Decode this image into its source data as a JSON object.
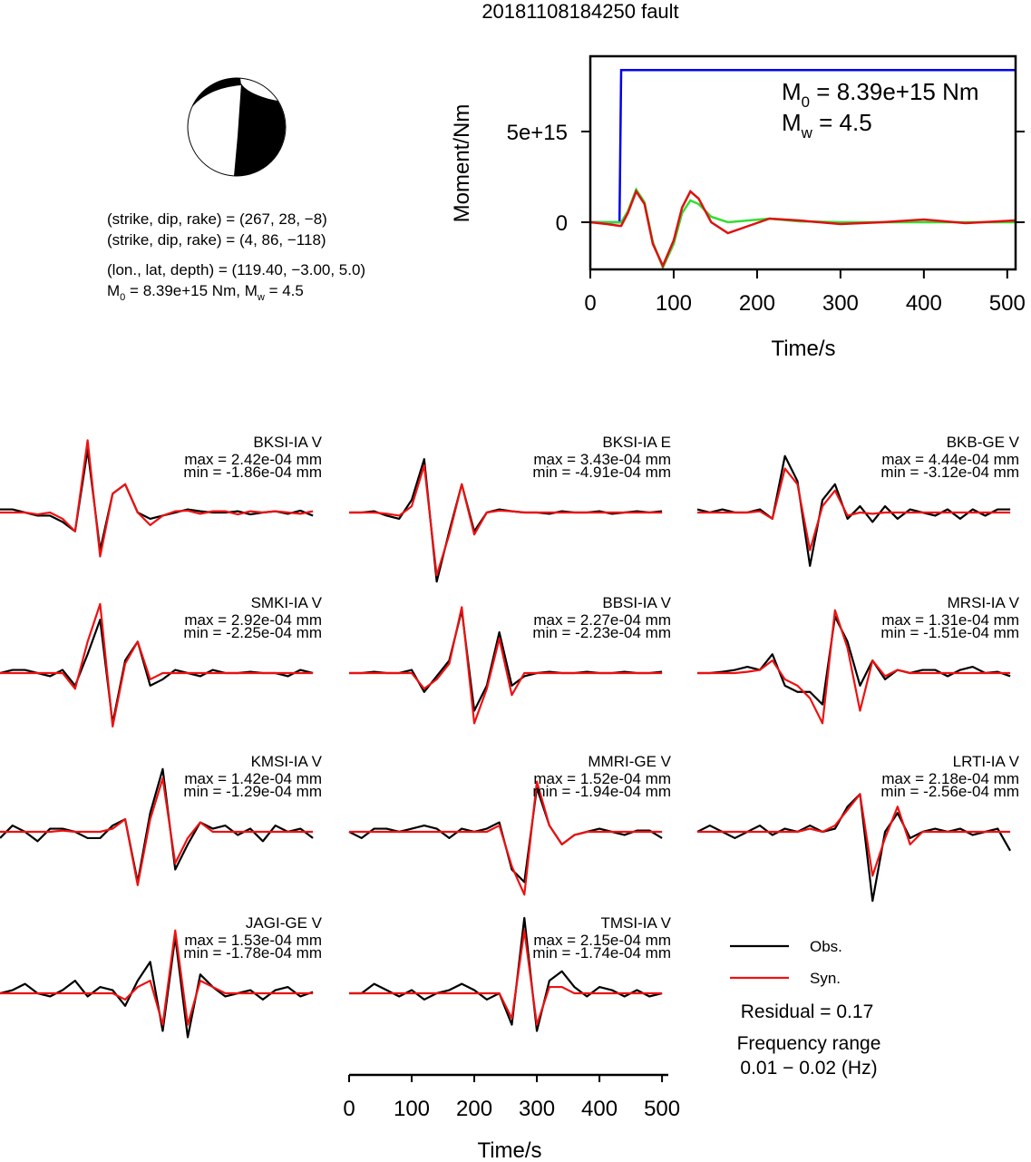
{
  "title": "20181108184250 fault",
  "info": [
    "(strike, dip, rake) = (267, 28, −8)",
    "(strike, dip, rake) = (4, 86, −118)",
    "(lon., lat, depth) = (119.40, −3.00, 5.0)"
  ],
  "info_moment": [
    {
      "text": "M"
    },
    {
      "sub": "0"
    },
    {
      "text": " = 8.39e+15 Nm, M"
    },
    {
      "sub": "w"
    },
    {
      "text": " = 4.5"
    }
  ],
  "chart_data": [
    {
      "type": "line",
      "xlabel": "Time/s",
      "ylabel": "Moment/Nm",
      "annotation": [
        [
          {
            "text": "M"
          },
          {
            "sub": "0"
          },
          {
            "text": " = 8.39e+15 Nm"
          }
        ],
        [
          {
            "text": "M"
          },
          {
            "sub": "w"
          },
          {
            "text": " = 4.5"
          }
        ]
      ],
      "x": [
        0,
        20,
        35,
        37,
        45,
        55,
        65,
        75,
        87,
        100,
        110,
        120,
        130,
        145,
        165,
        190,
        215,
        250,
        300,
        350,
        400,
        450,
        510
      ],
      "series": [
        {
          "color": "#0000ee",
          "values": [
            0,
            0,
            0,
            8390000000000000.0,
            8390000000000000.0,
            8390000000000000.0,
            8390000000000000.0,
            8390000000000000.0,
            8390000000000000.0,
            8390000000000000.0,
            8390000000000000.0,
            8390000000000000.0,
            8390000000000000.0,
            8390000000000000.0,
            8390000000000000.0,
            8390000000000000.0,
            8390000000000000.0,
            8390000000000000.0,
            8390000000000000.0,
            8390000000000000.0,
            8390000000000000.0,
            8390000000000000.0,
            8390000000000000.0
          ]
        },
        {
          "color": "#33dd33",
          "values": [
            0,
            0,
            0,
            0,
            600000000000000.0,
            1800000000000000.0,
            1100000000000000.0,
            -1100000000000000.0,
            -2500000000000000.0,
            -1200000000000000.0,
            500000000000000.0,
            1200000000000000.0,
            1000000000000000.0,
            300000000000000.0,
            0,
            100000000000000.0,
            200000000000000.0,
            50000000000000.0,
            0,
            0,
            0,
            0,
            0
          ]
        },
        {
          "color": "#dd1111",
          "values": [
            0,
            -100000000000000.0,
            -200000000000000.0,
            -200000000000000.0,
            500000000000000.0,
            1700000000000000.0,
            1000000000000000.0,
            -1200000000000000.0,
            -2400000000000000.0,
            -1000000000000000.0,
            800000000000000.0,
            1700000000000000.0,
            1300000000000000.0,
            0,
            -600000000000000.0,
            -200000000000000.0,
            200000000000000.0,
            100000000000000.0,
            -100000000000000.0,
            0,
            150000000000000.0,
            -50000000000000.0,
            100000000000000.0
          ]
        }
      ],
      "xlim": [
        0,
        510
      ],
      "xticks": [
        0,
        100,
        200,
        300,
        400,
        500
      ],
      "ylim": [
        -2600000000000000.0,
        9150000000000000.0
      ],
      "yticks": [
        0,
        {
          "value": 5000000000000000.0,
          "label": "5e+15"
        }
      ]
    },
    {
      "type": "waveform",
      "xlabel": "Time/s",
      "x": [
        0,
        20,
        40,
        60,
        80,
        100,
        120,
        140,
        160,
        180,
        200,
        220,
        240,
        260,
        280,
        300,
        320,
        340,
        360,
        380,
        400,
        420,
        440,
        460,
        480,
        500
      ],
      "xlim": [
        0,
        510
      ],
      "xticks": [
        0,
        100,
        200,
        300,
        400,
        500
      ],
      "ylim": [
        -1.3,
        1.3
      ],
      "legend": [
        {
          "name": "Obs.",
          "color": "#000000"
        },
        {
          "name": "Syn.",
          "color": "#ee1111"
        }
      ],
      "residual": "Residual = 0.17",
      "frequency": [
        "Frequency range",
        "0.01 − 0.02 (Hz)"
      ],
      "panels": [
        {
          "station": "BKSI-IA V",
          "max": "max = 2.42e-04 mm",
          "min": "min = -1.86e-04 mm",
          "obs": [
            0.05,
            0.05,
            0,
            -0.05,
            -0.05,
            -0.15,
            -0.3,
            1.0,
            -0.6,
            0.3,
            0.45,
            0,
            -0.1,
            -0.05,
            0,
            0.05,
            0.02,
            0,
            0,
            0.02,
            -0.03,
            0,
            0.02,
            -0.02,
            0.03,
            -0.05
          ],
          "syn": [
            0,
            0,
            0,
            -0.03,
            0,
            -0.1,
            -0.3,
            1.15,
            -0.7,
            0.3,
            0.45,
            0,
            -0.2,
            -0.05,
            0.02,
            0.03,
            -0.02,
            0.02,
            0.02,
            -0.03,
            0.02,
            0,
            0.02,
            0,
            -0.02,
            0.02
          ]
        },
        {
          "station": "BKSI-IA E",
          "max": "max = 3.43e-04 mm",
          "min": "min = -4.91e-04 mm",
          "obs": [
            0,
            0,
            0.02,
            -0.05,
            -0.1,
            0.2,
            0.85,
            -1.1,
            -0.3,
            0.45,
            -0.3,
            0,
            0.05,
            0.02,
            0,
            0,
            -0.02,
            0.02,
            0,
            0,
            0.02,
            -0.02,
            0,
            0.02,
            0,
            0.02
          ],
          "syn": [
            0,
            0,
            0,
            -0.02,
            -0.05,
            0.1,
            0.75,
            -1.0,
            -0.35,
            0.45,
            -0.35,
            0,
            0.03,
            0.02,
            0,
            0,
            0,
            0,
            0,
            0,
            0,
            0,
            0,
            0,
            0,
            0
          ]
        },
        {
          "station": "BKB-GE V",
          "max": "max = 4.44e-04 mm",
          "min": "min = -3.12e-04 mm",
          "obs": [
            0.05,
            0,
            0.05,
            0,
            0,
            0.05,
            -0.1,
            0.9,
            0.5,
            -0.85,
            0.2,
            0.45,
            -0.1,
            0.1,
            -0.15,
            0.1,
            -0.1,
            0.05,
            0,
            -0.05,
            0.05,
            -0.1,
            0.05,
            -0.05,
            0.05,
            0.05
          ],
          "syn": [
            0,
            0,
            0,
            0,
            0,
            0.02,
            -0.1,
            0.7,
            0.45,
            -0.6,
            0.1,
            0.35,
            -0.05,
            0,
            -0.02,
            0,
            0,
            0,
            0,
            0,
            0,
            0,
            0,
            0,
            0,
            0
          ]
        },
        {
          "station": "SMKI-IA V",
          "max": "max = 2.92e-04 mm",
          "min": "min = -2.25e-04 mm",
          "obs": [
            0,
            0.05,
            0.05,
            0,
            -0.05,
            0.05,
            -0.2,
            0.3,
            0.85,
            -0.8,
            0.2,
            0.5,
            -0.2,
            -0.1,
            0.05,
            0,
            -0.05,
            0.05,
            0,
            0,
            0.02,
            0,
            0,
            -0.05,
            0.05,
            0
          ],
          "syn": [
            0,
            0,
            0,
            0,
            0,
            0,
            -0.25,
            0.5,
            1.1,
            -0.85,
            0.15,
            0.5,
            -0.1,
            0,
            0,
            0,
            0,
            0,
            0,
            0,
            0,
            0,
            0,
            0,
            0,
            0
          ]
        },
        {
          "station": "BBSI-IA V",
          "max": "max = 2.27e-04 mm",
          "min": "min = -2.23e-04 mm",
          "obs": [
            0,
            0,
            0.02,
            0,
            0,
            0.05,
            -0.3,
            -0.05,
            0.2,
            1.0,
            -0.6,
            -0.2,
            0.65,
            -0.2,
            -0.05,
            0,
            0.02,
            0,
            0,
            0.02,
            0,
            0,
            0.02,
            0,
            0,
            0.02
          ],
          "syn": [
            0,
            0,
            0,
            0,
            0,
            0,
            -0.25,
            -0.1,
            0.15,
            1.05,
            -0.8,
            -0.25,
            0.55,
            -0.35,
            0,
            0,
            0,
            0,
            0,
            0,
            0,
            0,
            0,
            0,
            0,
            0
          ]
        },
        {
          "station": "MRSI-IA V",
          "max": "max = 1.31e-04 mm",
          "min": "min = -1.51e-04 mm",
          "obs": [
            0,
            0,
            0.02,
            0.05,
            0.1,
            0.05,
            0.3,
            -0.2,
            -0.3,
            -0.3,
            -0.5,
            0.9,
            0.5,
            -0.2,
            0.2,
            -0.1,
            0.05,
            0,
            0.05,
            0.05,
            -0.05,
            0.05,
            0.1,
            0,
            0.02,
            -0.05
          ],
          "syn": [
            0,
            0,
            0,
            0,
            0.02,
            0.05,
            0.2,
            -0.1,
            -0.2,
            -0.4,
            -0.8,
            1.0,
            0.4,
            -0.6,
            0.2,
            -0.05,
            0.05,
            0,
            0,
            0,
            0,
            0,
            0,
            0,
            0,
            0
          ]
        },
        {
          "station": "KMSI-IA V",
          "max": "max = 1.42e-04 mm",
          "min": "min = -1.29e-04 mm",
          "obs": [
            -0.1,
            0.1,
            0,
            -0.15,
            0.05,
            0.05,
            0,
            -0.1,
            -0.1,
            0.1,
            0.2,
            -0.8,
            0.3,
            1.0,
            -0.6,
            -0.2,
            0.15,
            0.05,
            0.1,
            -0.05,
            0.05,
            -0.15,
            0.1,
            0,
            0.05,
            -0.1
          ],
          "syn": [
            0,
            0,
            0,
            0,
            0,
            0.02,
            0,
            0,
            0,
            0.05,
            0.2,
            -0.85,
            0.2,
            0.85,
            -0.5,
            -0.1,
            0.15,
            0,
            0,
            0,
            0,
            0,
            0,
            0,
            0,
            0
          ]
        },
        {
          "station": "MMRI-GE V",
          "max": "max = 1.52e-04 mm",
          "min": "min = -1.94e-04 mm",
          "obs": [
            0,
            -0.1,
            0.05,
            0.05,
            0,
            0.05,
            0.1,
            0.05,
            -0.1,
            0.05,
            0,
            0.05,
            0.15,
            -0.6,
            -0.8,
            0.7,
            0.1,
            -0.2,
            -0.05,
            0,
            0.05,
            0,
            -0.05,
            0.02,
            0.02,
            -0.1
          ],
          "syn": [
            0,
            0,
            0,
            0,
            0,
            0,
            0,
            0,
            0,
            0,
            0,
            0,
            0.1,
            -0.55,
            -1.0,
            0.8,
            0.1,
            -0.2,
            -0.05,
            0,
            0,
            0,
            0,
            0,
            0,
            0
          ]
        },
        {
          "station": "LRTI-IA V",
          "max": "max = 2.18e-04 mm",
          "min": "min = -2.56e-04 mm",
          "obs": [
            0,
            0.1,
            0,
            -0.1,
            0,
            0.1,
            -0.05,
            0.05,
            0,
            0.1,
            0,
            0.05,
            0.4,
            0.6,
            -1.1,
            0,
            0.3,
            -0.1,
            0,
            0.05,
            0,
            0.05,
            -0.05,
            0,
            0.05,
            -0.3
          ],
          "syn": [
            0,
            0,
            0,
            0,
            0,
            0,
            0,
            0,
            0,
            0.05,
            0,
            0.1,
            0.35,
            0.6,
            -0.7,
            -0.1,
            0.4,
            -0.2,
            0,
            0,
            0,
            0,
            0,
            0,
            0,
            0
          ]
        },
        {
          "station": "JAGI-GE V",
          "max": "max = 1.53e-04 mm",
          "min": "min = -1.78e-04 mm",
          "obs": [
            0,
            0.05,
            0.15,
            0,
            -0.05,
            0.05,
            0.2,
            -0.05,
            0.1,
            0.05,
            -0.2,
            0.2,
            0.5,
            -0.6,
            0.9,
            -0.7,
            0.3,
            0.1,
            -0.05,
            0,
            0.05,
            -0.1,
            0.05,
            0.1,
            -0.05,
            0.02
          ],
          "syn": [
            0,
            0,
            0,
            0,
            0,
            0,
            0,
            0,
            0,
            0,
            -0.1,
            0.1,
            0.2,
            -0.5,
            1.0,
            -0.5,
            0.2,
            0.1,
            0,
            0,
            0,
            0,
            0,
            0,
            0,
            0
          ]
        },
        {
          "station": "TMSI-IA V",
          "max": "max = 2.15e-04 mm",
          "min": "min = -1.74e-04 mm",
          "obs": [
            0,
            0,
            0.15,
            0.05,
            -0.05,
            0.05,
            -0.1,
            0,
            0.05,
            0.15,
            0.05,
            -0.1,
            0,
            -0.5,
            1.2,
            -0.6,
            0.2,
            0.35,
            0.1,
            -0.05,
            0.1,
            0.05,
            -0.05,
            0.05,
            -0.05,
            0
          ],
          "syn": [
            0,
            0,
            0,
            0,
            0,
            0,
            0,
            0,
            0,
            0,
            0,
            0,
            0,
            -0.4,
            1.0,
            -0.5,
            0.1,
            0.1,
            0,
            0,
            0,
            0,
            0,
            0,
            0,
            0
          ]
        }
      ]
    }
  ]
}
